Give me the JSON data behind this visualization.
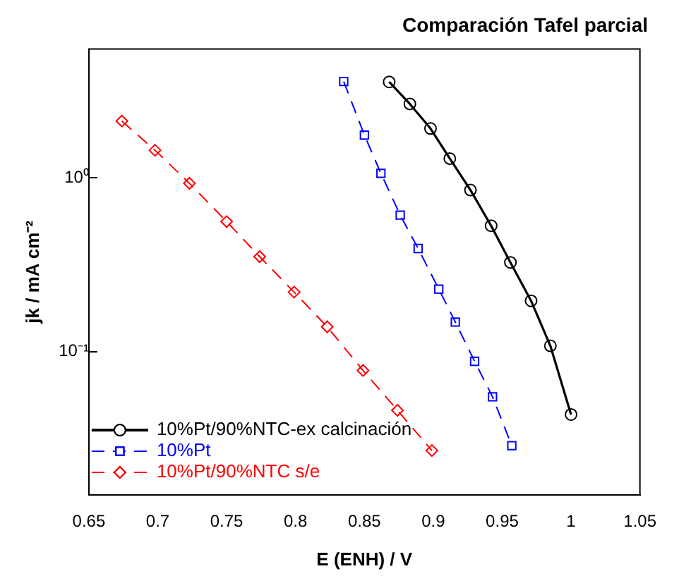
{
  "chart_data": {
    "type": "line",
    "title": "Comparación Tafel parcial",
    "xlabel": "E (ENH) / V",
    "ylabel": "jk / mA cm⁻²",
    "log": "y",
    "xlim": [
      0.65,
      1.05
    ],
    "ylim": [
      0.015,
      5.5
    ],
    "xticks": [
      0.65,
      0.7,
      0.75,
      0.8,
      0.85,
      0.9,
      0.95,
      1,
      1.05
    ],
    "yticks": [
      {
        "value": 0.1,
        "label": "10⁻¹"
      },
      {
        "value": 1,
        "label": "10⁰"
      }
    ],
    "grid": false,
    "legend": "bottom left",
    "series": [
      {
        "name": "10%Pt/90%NTC-ex calcinación",
        "color": "#000000",
        "marker": "circle",
        "line_style": "solid",
        "x": [
          0.868,
          0.883,
          0.898,
          0.912,
          0.927,
          0.942,
          0.956,
          0.971,
          0.985,
          1.0
        ],
        "values": [
          3.56,
          2.66,
          1.92,
          1.29,
          0.85,
          0.53,
          0.326,
          0.196,
          0.108,
          0.0435
        ]
      },
      {
        "name": "10%Pt",
        "color": "#0000ff",
        "marker": "square",
        "line_style": "dashed",
        "x": [
          0.835,
          0.85,
          0.862,
          0.876,
          0.889,
          0.904,
          0.916,
          0.93,
          0.943,
          0.957
        ],
        "values": [
          3.58,
          1.76,
          1.06,
          0.61,
          0.392,
          0.229,
          0.148,
          0.088,
          0.055,
          0.0288
        ]
      },
      {
        "name": "10%Pt/90%NTC s/e",
        "color": "#ff0000",
        "marker": "diamond",
        "line_style": "dashed",
        "x": [
          0.674,
          0.698,
          0.723,
          0.75,
          0.774,
          0.799,
          0.823,
          0.849,
          0.874,
          0.899
        ],
        "values": [
          2.12,
          1.44,
          0.93,
          0.56,
          0.352,
          0.22,
          0.139,
          0.078,
          0.046,
          0.027
        ]
      }
    ]
  }
}
